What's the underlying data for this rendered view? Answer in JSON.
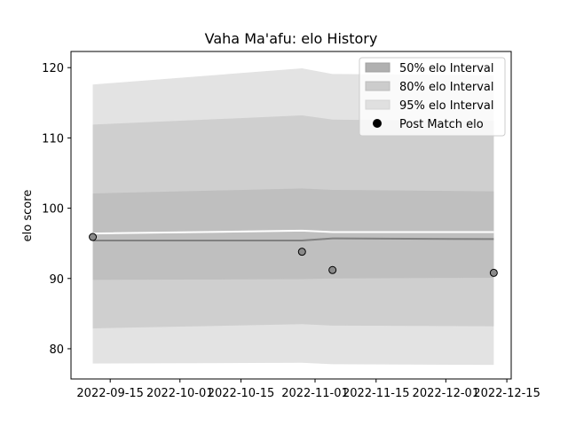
{
  "chart_data": {
    "type": "area",
    "title": "Vaha Ma'afu: elo History",
    "xlabel": "",
    "ylabel": "elo score",
    "xlim": [
      "2022-09-06",
      "2022-12-16"
    ],
    "ylim": [
      75.7,
      122.3
    ],
    "x_ticks": [
      "2022-09-15",
      "2022-10-01",
      "2022-10-15",
      "2022-11-01",
      "2022-11-15",
      "2022-12-01",
      "2022-12-15"
    ],
    "y_ticks": [
      80,
      90,
      100,
      110,
      120
    ],
    "legend_position": "top-right",
    "grid": false,
    "dates": [
      "2022-09-11",
      "2022-10-29",
      "2022-11-05",
      "2022-12-12"
    ],
    "series": [
      {
        "name": "95% elo Interval",
        "kind": "band",
        "color": "#e3e3e3",
        "lower": [
          77.9,
          78.0,
          77.8,
          77.7
        ],
        "upper": [
          117.6,
          119.9,
          119.1,
          118.9
        ]
      },
      {
        "name": "80% elo Interval",
        "kind": "band",
        "color": "#cfcfcf",
        "lower": [
          82.9,
          83.5,
          83.3,
          83.2
        ],
        "upper": [
          111.9,
          113.2,
          112.6,
          112.4
        ]
      },
      {
        "name": "50% elo Interval",
        "kind": "band",
        "color": "#bfbfbf",
        "lower": [
          89.8,
          89.9,
          90.0,
          90.1
        ],
        "upper": [
          102.1,
          102.8,
          102.6,
          102.4
        ]
      },
      {
        "name": "mean",
        "kind": "line",
        "color": "#ffffff",
        "values": [
          96.4,
          96.8,
          96.6,
          96.6
        ]
      },
      {
        "name": "median",
        "kind": "line",
        "color": "#808080",
        "values": [
          95.4,
          95.4,
          95.7,
          95.6
        ]
      },
      {
        "name": "Post Match elo",
        "kind": "points",
        "color": "#8a8a8a",
        "values": [
          95.9,
          93.8,
          91.2,
          90.8
        ]
      }
    ],
    "legend": [
      {
        "label": "50% elo Interval",
        "swatch": "band",
        "color": "#b0b0b0",
        "edge": "#a0a0a0"
      },
      {
        "label": "80% elo Interval",
        "swatch": "band",
        "color": "#cccccc",
        "edge": "#bdbdbd"
      },
      {
        "label": "95% elo Interval",
        "swatch": "band",
        "color": "#e0e0e0",
        "edge": "#d4d4d4"
      },
      {
        "label": "Post Match elo",
        "swatch": "point",
        "color": "#000000"
      }
    ]
  }
}
